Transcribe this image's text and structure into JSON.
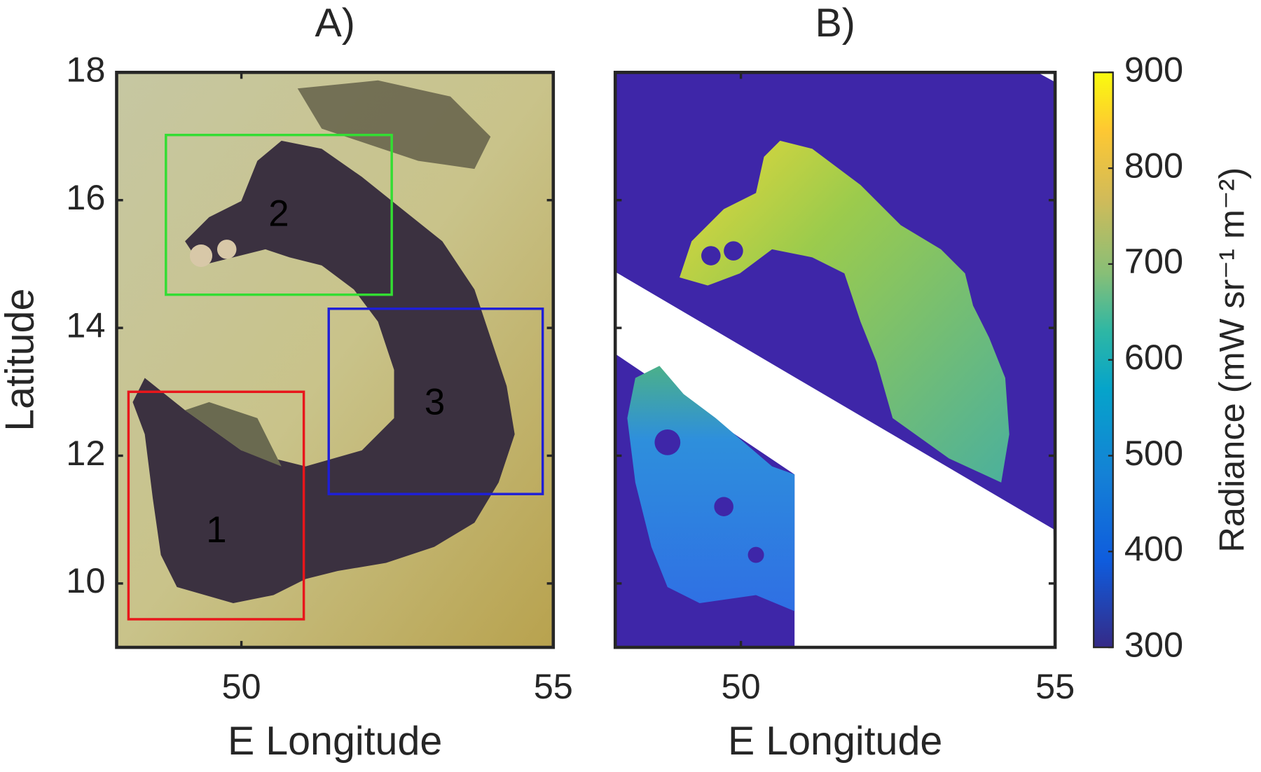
{
  "chart_data": [
    {
      "type": "image",
      "title": "A)",
      "x_label": "E Longitude",
      "y_label": "Latitude",
      "xlim": [
        48,
        55
      ],
      "ylim": [
        9,
        18
      ],
      "xticks": [
        50,
        55
      ],
      "yticks": [
        10,
        12,
        14,
        16,
        18
      ],
      "ytick_labels": true,
      "annotations": [
        {
          "label": "1",
          "color": "#e8161b",
          "x": [
            48.19,
            51.0
          ],
          "y": [
            9.44,
            13.0
          ],
          "label_x": 49.6,
          "label_y": 10.8
        },
        {
          "label": "2",
          "color": "#33dd33",
          "x": [
            48.79,
            52.41
          ],
          "y": [
            14.52,
            17.02
          ],
          "label_x": 50.6,
          "label_y": 15.75
        },
        {
          "label": "3",
          "color": "#1f1fd6",
          "x": [
            51.4,
            54.83
          ],
          "y": [
            11.4,
            14.3
          ],
          "label_x": 53.1,
          "label_y": 12.8
        }
      ]
    },
    {
      "type": "image",
      "title": "B)",
      "x_label": "E Longitude",
      "xlim": [
        48,
        55
      ],
      "ylim": [
        9,
        18
      ],
      "xticks": [
        50,
        55
      ],
      "yticks": [
        10,
        12,
        14,
        16,
        18
      ],
      "ytick_labels": false,
      "colorbar": {
        "label": "Radiance (mW sr⁻¹ m⁻²)",
        "lim": [
          300,
          900
        ],
        "ticks": [
          300,
          400,
          500,
          600,
          700,
          800,
          900
        ]
      }
    }
  ]
}
